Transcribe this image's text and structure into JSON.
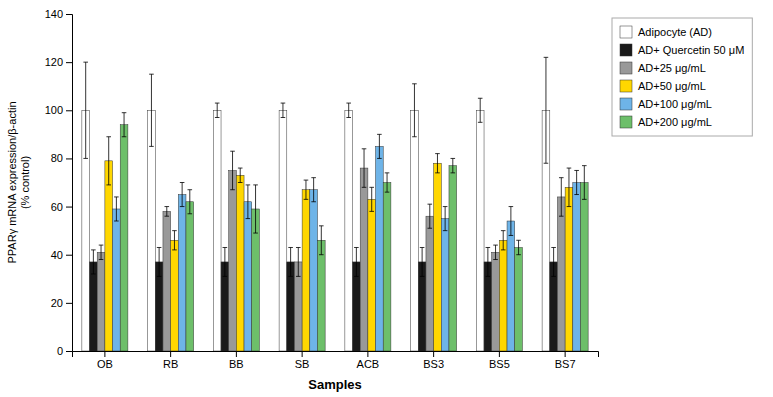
{
  "chart_data": {
    "type": "bar",
    "xlabel": "Samples",
    "ylabel": "PPARγ mRNA expression/β-actin\n(% control)",
    "categories": [
      "OB",
      "RB",
      "BB",
      "SB",
      "ACB",
      "BS3",
      "BS5",
      "BS7"
    ],
    "series": [
      {
        "name": "Adipocyte (AD)",
        "color": "#FFFFFF",
        "values": [
          100,
          100,
          100,
          100,
          100,
          100,
          100,
          100
        ],
        "errors": [
          20,
          15,
          3,
          3,
          3,
          11,
          5,
          22
        ]
      },
      {
        "name": "AD+ Quercetin 50 μM",
        "color": "#1a1a1a",
        "values": [
          37,
          37,
          37,
          37,
          37,
          37,
          37,
          37
        ],
        "errors": [
          5,
          6,
          6,
          6,
          6,
          6,
          6,
          6
        ]
      },
      {
        "name": "AD+25 μg/mL",
        "color": "#999999",
        "values": [
          41,
          58,
          75,
          37,
          76,
          56,
          41,
          64
        ],
        "errors": [
          3,
          2,
          8,
          6,
          8,
          5,
          3,
          8
        ]
      },
      {
        "name": "AD+50 μg/mL",
        "color": "#FFD700",
        "values": [
          79,
          46,
          73,
          67,
          63,
          78,
          46,
          68
        ],
        "errors": [
          10,
          4,
          3,
          4,
          5,
          4,
          4,
          8
        ]
      },
      {
        "name": "AD+100 μg/mL",
        "color": "#6EB4E8",
        "values": [
          59,
          65,
          62,
          67,
          85,
          55,
          54,
          70
        ],
        "errors": [
          5,
          5,
          7,
          5,
          5,
          5,
          6,
          5
        ]
      },
      {
        "name": "AD+200 μg/mL",
        "color": "#6DBF6A",
        "values": [
          94,
          62,
          59,
          46,
          70,
          77,
          43,
          70
        ],
        "errors": [
          5,
          5,
          10,
          6,
          4,
          3,
          3,
          7
        ]
      }
    ],
    "ylim": [
      0,
      140
    ],
    "yticks": [
      0,
      20,
      40,
      60,
      80,
      100,
      120,
      140
    ],
    "grid": false,
    "legend": "right"
  }
}
